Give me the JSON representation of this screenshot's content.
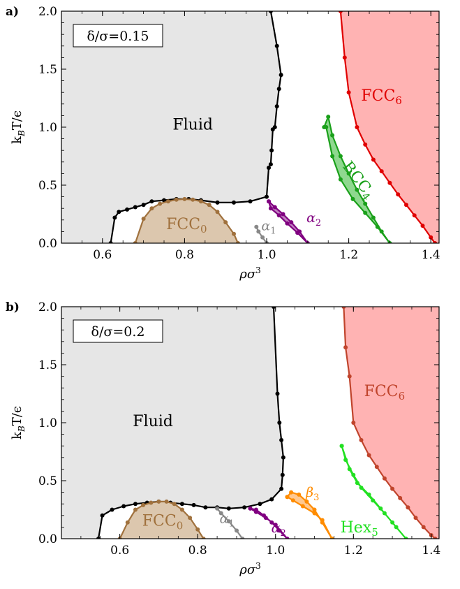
{
  "chart_data": [
    {
      "type": "scatter",
      "panel_label": "a)",
      "annotation": "δ/σ=0.15",
      "xlabel": "ρσ³",
      "ylabel": "k_BT/ε",
      "xlim": [
        0.5,
        1.42
      ],
      "ylim": [
        0.0,
        2.0
      ],
      "xticks": [
        0.6,
        0.8,
        1.0,
        1.2,
        1.4
      ],
      "yticks": [
        0.0,
        0.5,
        1.0,
        1.5,
        2.0
      ],
      "tick_labels_x": [
        "0.6",
        "0.8",
        "1.0",
        "1.2",
        "1.4"
      ],
      "tick_labels_y": [
        "0.0",
        "0.5",
        "1.0",
        "1.5",
        "2.0"
      ],
      "series": [
        {
          "id": "fluid",
          "label": "Fluid",
          "color": "#000000",
          "fill": "#e6e6e6",
          "x": [
            0.62,
            0.63,
            0.64,
            0.66,
            0.68,
            0.7,
            0.72,
            0.75,
            0.78,
            0.81,
            0.84,
            0.88,
            0.92,
            0.96,
            1.0,
            1.005,
            1.01,
            1.012,
            1.015,
            1.02,
            1.025,
            1.03,
            1.035,
            1.025,
            1.01
          ],
          "y": [
            0.0,
            0.22,
            0.27,
            0.29,
            0.31,
            0.33,
            0.36,
            0.37,
            0.38,
            0.38,
            0.37,
            0.35,
            0.35,
            0.36,
            0.4,
            0.65,
            0.68,
            0.8,
            0.98,
            1.0,
            1.18,
            1.33,
            1.45,
            1.7,
            2.0
          ],
          "label_pos": [
            0.82,
            0.98
          ]
        },
        {
          "id": "fcc0",
          "label": "FCC",
          "sub": "0",
          "color": "#a0713d",
          "fill": "#dcc7ae",
          "x": [
            0.68,
            0.7,
            0.72,
            0.74,
            0.76,
            0.78,
            0.8,
            0.82,
            0.84,
            0.86,
            0.88,
            0.9,
            0.92,
            0.93
          ],
          "y": [
            0.0,
            0.21,
            0.3,
            0.34,
            0.36,
            0.375,
            0.38,
            0.375,
            0.36,
            0.33,
            0.27,
            0.18,
            0.08,
            0.0
          ],
          "label_pos": [
            0.805,
            0.12
          ]
        },
        {
          "id": "alpha1",
          "label": "α",
          "sub": "1",
          "color": "#888888",
          "fill": "none",
          "x": [
            0.975,
            0.98,
            0.99,
            1.0
          ],
          "y": [
            0.14,
            0.1,
            0.05,
            0.0
          ],
          "label_pos": [
            1.005,
            0.11
          ]
        },
        {
          "id": "alpha2",
          "label": "α",
          "sub": "2",
          "color": "#800080",
          "fill": "#c080c0",
          "x": [
            1.005,
            1.02,
            1.04,
            1.06,
            1.08,
            1.1,
            1.075,
            1.05,
            1.03,
            1.01,
            1.005
          ],
          "y": [
            0.36,
            0.31,
            0.25,
            0.18,
            0.1,
            0.0,
            0.09,
            0.17,
            0.24,
            0.3,
            0.36
          ],
          "label_pos": [
            1.115,
            0.18
          ]
        },
        {
          "id": "bcc4",
          "label": "BCC",
          "sub": "4",
          "color": "#1aa01a",
          "fill": "#8fd88f",
          "x": [
            1.14,
            1.15,
            1.16,
            1.18,
            1.2,
            1.22,
            1.24,
            1.26,
            1.28,
            1.3,
            1.27,
            1.24,
            1.21,
            1.18,
            1.16,
            1.145
          ],
          "y": [
            1.0,
            1.09,
            0.93,
            0.75,
            0.6,
            0.46,
            0.34,
            0.22,
            0.1,
            0.0,
            0.14,
            0.26,
            0.38,
            0.55,
            0.75,
            1.0
          ],
          "label_pos": [
            1.215,
            0.52
          ]
        },
        {
          "id": "fcc6",
          "label": "FCC",
          "sub": "6",
          "color": "#e00000",
          "fill": "#ffb3b3",
          "x": [
            1.18,
            1.19,
            1.2,
            1.22,
            1.24,
            1.26,
            1.28,
            1.3,
            1.32,
            1.34,
            1.36,
            1.38,
            1.4,
            1.41
          ],
          "y": [
            2.0,
            1.6,
            1.3,
            1.0,
            0.85,
            0.72,
            0.62,
            0.52,
            0.42,
            0.33,
            0.24,
            0.15,
            0.05,
            0.0
          ],
          "label_pos": [
            1.28,
            1.23
          ]
        }
      ]
    },
    {
      "type": "scatter",
      "panel_label": "b)",
      "annotation": "δ/σ=0.2",
      "xlabel": "ρσ³",
      "ylabel": "k_BT/ε",
      "xlim": [
        0.45,
        1.42
      ],
      "ylim": [
        0.0,
        2.0
      ],
      "xticks": [
        0.6,
        0.8,
        1.0,
        1.2,
        1.4
      ],
      "yticks": [
        0.0,
        0.5,
        1.0,
        1.5,
        2.0
      ],
      "tick_labels_x": [
        "0.6",
        "0.8",
        "1.0",
        "1.2",
        "1.4"
      ],
      "tick_labels_y": [
        "0.0",
        "0.5",
        "1.0",
        "1.5",
        "2.0"
      ],
      "series": [
        {
          "id": "fluid",
          "label": "Fluid",
          "color": "#000000",
          "fill": "#e6e6e6",
          "x": [
            0.545,
            0.555,
            0.58,
            0.61,
            0.64,
            0.67,
            0.7,
            0.73,
            0.76,
            0.79,
            0.82,
            0.85,
            0.88,
            0.92,
            0.96,
            0.99,
            1.015,
            1.018,
            1.02,
            1.015,
            1.01,
            1.005,
            0.995
          ],
          "y": [
            0.0,
            0.2,
            0.25,
            0.28,
            0.3,
            0.31,
            0.32,
            0.31,
            0.3,
            0.29,
            0.27,
            0.27,
            0.26,
            0.27,
            0.3,
            0.34,
            0.43,
            0.55,
            0.7,
            0.85,
            1.0,
            1.25,
            2.0
          ],
          "label_pos": [
            0.685,
            0.97
          ]
        },
        {
          "id": "fcc0",
          "label": "FCC",
          "sub": "0",
          "color": "#a0713d",
          "fill": "#dcc7ae",
          "x": [
            0.6,
            0.62,
            0.64,
            0.66,
            0.68,
            0.7,
            0.72,
            0.74,
            0.76,
            0.78,
            0.8,
            0.815
          ],
          "y": [
            0.0,
            0.14,
            0.25,
            0.29,
            0.31,
            0.32,
            0.32,
            0.3,
            0.25,
            0.18,
            0.08,
            0.0
          ],
          "label_pos": [
            0.71,
            0.11
          ]
        },
        {
          "id": "alpha1",
          "label": "α",
          "sub": "1",
          "color": "#888888",
          "fill": "none",
          "x": [
            0.85,
            0.86,
            0.88,
            0.9,
            0.915
          ],
          "y": [
            0.26,
            0.22,
            0.15,
            0.07,
            0.0
          ],
          "label_pos": [
            0.875,
            0.135
          ]
        },
        {
          "id": "alpha2",
          "label": "α",
          "sub": "2",
          "color": "#800080",
          "fill": "#c080c0",
          "x": [
            0.935,
            0.95,
            0.97,
            0.99,
            1.01,
            1.03,
            1.0,
            0.975,
            0.95,
            0.935
          ],
          "y": [
            0.26,
            0.25,
            0.2,
            0.14,
            0.07,
            0.0,
            0.12,
            0.18,
            0.23,
            0.26
          ],
          "label_pos": [
            1.008,
            0.055
          ]
        },
        {
          "id": "beta3",
          "label": "β",
          "sub": "3",
          "color": "#ff8c00",
          "fill": "#ffc890",
          "x": [
            1.03,
            1.04,
            1.06,
            1.08,
            1.1,
            1.12,
            1.145,
            1.12,
            1.1,
            1.07,
            1.045,
            1.03
          ],
          "y": [
            0.36,
            0.4,
            0.38,
            0.32,
            0.25,
            0.14,
            0.0,
            0.16,
            0.22,
            0.28,
            0.33,
            0.36
          ],
          "label_pos": [
            1.095,
            0.36
          ]
        },
        {
          "id": "hex5",
          "label": "Hex",
          "sub": "5",
          "color": "#22e022",
          "fill": "#a0f0a0",
          "x": [
            1.17,
            1.18,
            1.2,
            1.22,
            1.25,
            1.28,
            1.31,
            1.335,
            1.3,
            1.27,
            1.24,
            1.21,
            1.19,
            1.17
          ],
          "y": [
            0.8,
            0.68,
            0.55,
            0.44,
            0.33,
            0.22,
            0.1,
            0.0,
            0.14,
            0.26,
            0.38,
            0.48,
            0.6,
            0.8
          ],
          "label_pos": [
            1.215,
            0.055
          ]
        },
        {
          "id": "fcc6",
          "label": "FCC",
          "sub": "6",
          "color": "#c0442c",
          "fill": "#ffb3b3",
          "x": [
            1.175,
            1.18,
            1.19,
            1.2,
            1.22,
            1.24,
            1.26,
            1.28,
            1.3,
            1.32,
            1.34,
            1.36,
            1.38,
            1.4,
            1.41
          ],
          "y": [
            2.0,
            1.65,
            1.4,
            1.0,
            0.85,
            0.72,
            0.62,
            0.52,
            0.43,
            0.35,
            0.27,
            0.18,
            0.1,
            0.03,
            0.0
          ],
          "label_pos": [
            1.28,
            1.23
          ]
        }
      ]
    }
  ]
}
